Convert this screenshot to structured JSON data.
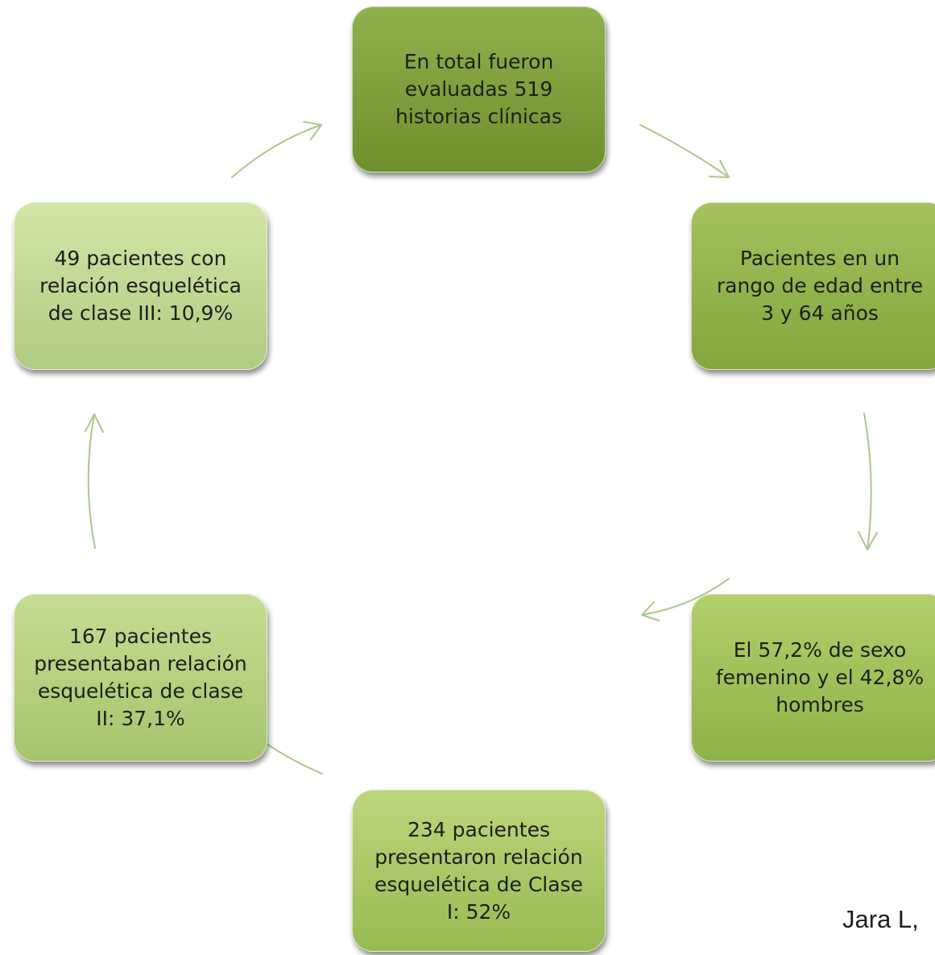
{
  "steps": [
    "En total fueron evaluadas 519 historias clínicas",
    "Pacientes en un rango de edad entre 3 y 64 años",
    "El 57,2% de sexo femenino y el 42,8% hombres",
    "234 pacientes presentaron relación esquelética de Clase I: 52%",
    "167 pacientes presentaban relación esquelética de clase II: 37,1%",
    "49 pacientes con relación esquelética de clase III: 10,9%"
  ],
  "step_lines": [
    [
      "En total fueron",
      "evaluadas 519",
      "historias clínicas"
    ],
    [
      "Pacientes en un",
      "rango de edad entre",
      "3 y 64 años"
    ],
    [
      "El 57,2% de sexo",
      "femenino y el 42,8%",
      "hombres"
    ],
    [
      "234 pacientes",
      "presentaron relación",
      "esquelética de Clase",
      "I: 52%"
    ],
    [
      "167 pacientes",
      "presentaban relación",
      "esquelética de clase",
      "II: 37,1%"
    ],
    [
      "49 pacientes con",
      "relación esquelética",
      "de clase III: 10,9%"
    ]
  ],
  "citation": "Jara L,",
  "colors": {
    "arrow": "#a9c98a",
    "step_1": "#7fa13d",
    "step_2": "#93b44d",
    "step_3": "#a0c15a",
    "step_4": "#aac86a",
    "step_5": "#b5d080",
    "step_6": "#c0d894"
  }
}
